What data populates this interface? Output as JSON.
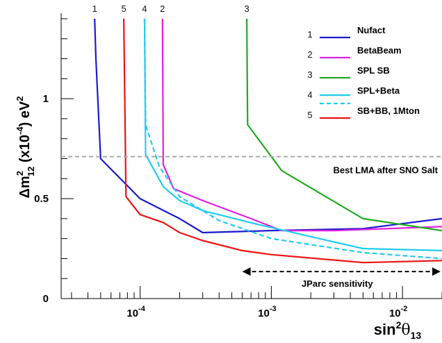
{
  "chart_data": {
    "type": "line",
    "title": "",
    "xlabel_main": "sin",
    "xlabel_sup": "2",
    "xlabel_theta": "θ",
    "xlabel_sub": "13",
    "ylabel_main": "Δm",
    "ylabel_sup": "2",
    "ylabel_sub": "12",
    "ylabel_tail": "(x10",
    "ylabel_exp": "-4",
    "ylabel_unit": ") eV",
    "ylabel_unit_sup": "2",
    "x_scale": "log",
    "xlim": [
      2.5e-05,
      0.02
    ],
    "ylim": [
      0,
      1.4
    ],
    "x_tick_labels": [
      {
        "value": 0.0001,
        "base": "10",
        "exp": "-4"
      },
      {
        "value": 0.001,
        "base": "10",
        "exp": "-3"
      },
      {
        "value": 0.01,
        "base": "10",
        "exp": "-2"
      }
    ],
    "y_ticks": [
      {
        "value": 0,
        "label": "0"
      },
      {
        "value": 0.5,
        "label": "0.5"
      },
      {
        "value": 1,
        "label": "1"
      }
    ],
    "legend_position": "top-right",
    "series": [
      {
        "id": "1",
        "name": "Nufact",
        "color": "#1a1acc",
        "style": "solid",
        "x": [
          4.5e-05,
          4.6e-05,
          5e-05,
          0.0001,
          0.0002,
          0.0003,
          0.001,
          0.005,
          0.02
        ],
        "y": [
          1.4,
          1.2,
          0.7,
          0.5,
          0.4,
          0.33,
          0.34,
          0.35,
          0.4
        ]
      },
      {
        "id": "2",
        "name": "BetaBeam",
        "color": "#e020e0",
        "style": "solid",
        "x": [
          0.000148,
          0.00015,
          0.00018,
          0.0003,
          0.0007,
          0.0012,
          0.003,
          0.02
        ],
        "y": [
          1.4,
          0.67,
          0.55,
          0.49,
          0.4,
          0.34,
          0.34,
          0.36
        ]
      },
      {
        "id": "3",
        "name": "SPL SB",
        "color": "#22aa22",
        "style": "solid",
        "x": [
          0.00065,
          0.00066,
          0.0012,
          0.005,
          0.02
        ],
        "y": [
          1.4,
          0.87,
          0.64,
          0.4,
          0.34
        ]
      },
      {
        "id": "4",
        "name": "SPL+Beta",
        "color": "#22ccee",
        "style": "solid",
        "x": [
          0.000108,
          0.00011,
          0.00015,
          0.0002,
          0.0003,
          0.0008,
          0.002,
          0.005,
          0.02
        ],
        "y": [
          1.4,
          0.72,
          0.56,
          0.49,
          0.44,
          0.37,
          0.31,
          0.25,
          0.24
        ]
      },
      {
        "id": "4b",
        "name": "",
        "color": "#22ccee",
        "style": "dashed",
        "x": [
          0.000108,
          0.00011,
          0.00014,
          0.0002,
          0.0004,
          0.001,
          0.005,
          0.02
        ],
        "y": [
          1.4,
          0.87,
          0.66,
          0.51,
          0.39,
          0.3,
          0.23,
          0.2
        ]
      },
      {
        "id": "5",
        "name": "SB+BB, 1Mton",
        "color": "#ee1111",
        "style": "solid",
        "x": [
          7.5e-05,
          7.8e-05,
          0.0001,
          0.00015,
          0.0002,
          0.0003,
          0.0006,
          0.001,
          0.005,
          0.02
        ],
        "y": [
          1.4,
          0.51,
          0.42,
          0.38,
          0.33,
          0.29,
          0.24,
          0.22,
          0.18,
          0.19
        ]
      }
    ],
    "top_curve_labels": [
      {
        "text": "1",
        "x": 4.5e-05
      },
      {
        "text": "5",
        "x": 7.5e-05
      },
      {
        "text": "4",
        "x": 0.000108
      },
      {
        "text": "2",
        "x": 0.000148
      },
      {
        "text": "3",
        "x": 0.00065
      }
    ],
    "legend": [
      {
        "number": "1",
        "label": "Nufact",
        "color": "#1a1acc",
        "style": "solid"
      },
      {
        "number": "2",
        "label": "BetaBeam",
        "color": "#e020e0",
        "style": "solid"
      },
      {
        "number": "3",
        "label": "SPL SB",
        "color": "#22aa22",
        "style": "solid"
      },
      {
        "number": "4",
        "label": "SPL+Beta",
        "color": "#22ccee",
        "style": "solid-and-dashed"
      },
      {
        "number": "5",
        "label": "SB+BB, 1Mton",
        "color": "#ee1111",
        "style": "solid"
      }
    ],
    "reference_line": {
      "y": 0.71,
      "label": "Best LMA after SNO Salt",
      "color": "#aaaaaa",
      "style": "dashed"
    },
    "sensitivity_arrow": {
      "x_from": 0.0006,
      "x_to": 0.02,
      "y": 0.135,
      "label": "JParc sensitivity"
    }
  }
}
